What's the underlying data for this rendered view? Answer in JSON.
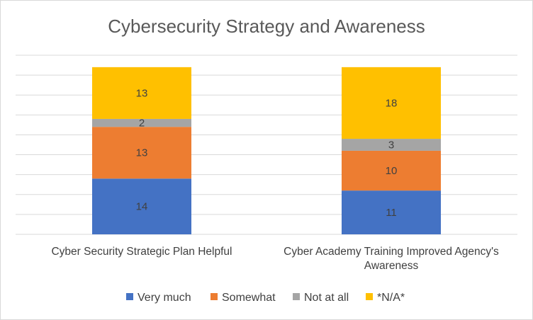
{
  "chart_data": {
    "type": "bar",
    "stacked": true,
    "title": "Cybersecurity Strategy and Awareness",
    "categories": [
      [
        "Cyber Security Strategic Plan Helpful"
      ],
      [
        "Cyber Academy Training Improved Agency's",
        "Awareness"
      ]
    ],
    "series": [
      {
        "name": "Very much",
        "color": "#4472c4",
        "values": [
          14,
          11
        ]
      },
      {
        "name": "Somewhat",
        "color": "#ed7d31",
        "values": [
          13,
          10
        ]
      },
      {
        "name": "Not at all",
        "color": "#a5a5a5",
        "values": [
          2,
          3
        ]
      },
      {
        "name": "*N/A*",
        "color": "#ffc000",
        "values": [
          13,
          18
        ]
      }
    ],
    "ylim": [
      0,
      45
    ],
    "grid": true,
    "legend": "bottom"
  }
}
